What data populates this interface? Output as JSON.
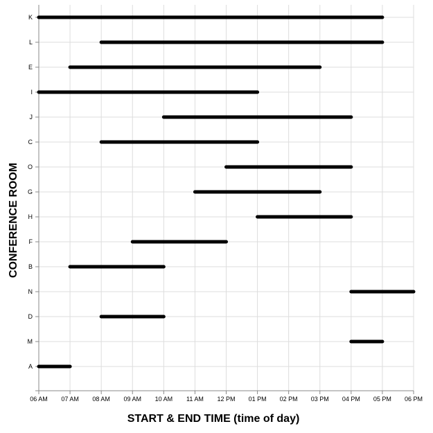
{
  "chart_data": {
    "type": "gantt",
    "xlabel": "START & END TIME (time of day)",
    "ylabel": "CONFERENCE ROOM",
    "x_ticks": [
      "06 AM",
      "07 AM",
      "08 AM",
      "09 AM",
      "10 AM",
      "11 AM",
      "12 PM",
      "01 PM",
      "02 PM",
      "03 PM",
      "04 PM",
      "05 PM",
      "06 PM"
    ],
    "xlim": [
      6,
      18
    ],
    "categories": [
      "K",
      "L",
      "E",
      "I",
      "J",
      "C",
      "O",
      "G",
      "H",
      "F",
      "B",
      "N",
      "D",
      "M",
      "A"
    ],
    "bars": [
      {
        "room": "K",
        "start": 6,
        "end": 17
      },
      {
        "room": "L",
        "start": 8,
        "end": 17
      },
      {
        "room": "E",
        "start": 7,
        "end": 15
      },
      {
        "room": "I",
        "start": 6,
        "end": 13
      },
      {
        "room": "J",
        "start": 10,
        "end": 16
      },
      {
        "room": "C",
        "start": 8,
        "end": 13
      },
      {
        "room": "O",
        "start": 12,
        "end": 16
      },
      {
        "room": "G",
        "start": 11,
        "end": 15
      },
      {
        "room": "H",
        "start": 13,
        "end": 16
      },
      {
        "room": "F",
        "start": 9,
        "end": 12
      },
      {
        "room": "B",
        "start": 7,
        "end": 10
      },
      {
        "room": "N",
        "start": 16,
        "end": 18
      },
      {
        "room": "D",
        "start": 8,
        "end": 10
      },
      {
        "room": "M",
        "start": 16,
        "end": 17
      },
      {
        "room": "A",
        "start": 6,
        "end": 7
      }
    ],
    "bar_color": "#000000",
    "grid": true
  }
}
